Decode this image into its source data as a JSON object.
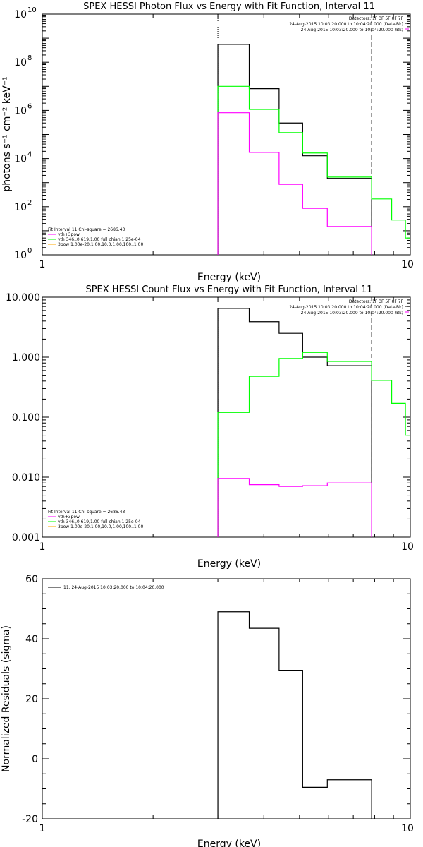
{
  "chart_data": [
    {
      "type": "line",
      "title": "SPEX HESSI Photon Flux vs Energy with Fit Function, Interval 11",
      "xlabel": "Energy (keV)",
      "ylabel": "photons s⁻¹ cm⁻² keV⁻¹",
      "xscale": "log",
      "yscale": "log",
      "xlim": [
        1,
        10
      ],
      "ylim": [
        1,
        10000000000.0
      ],
      "x_ticks": [
        "1",
        "10"
      ],
      "y_ticks": [
        "10^0",
        "10^2",
        "10^4",
        "10^6",
        "10^8",
        "10^10"
      ],
      "vlines": [
        {
          "x": 3.0,
          "style": "dotted",
          "color": "#000000"
        },
        {
          "x": 7.85,
          "style": "dashed",
          "color": "#000000"
        }
      ],
      "annotation_top_right": [
        "Detectors: 1F 3F 5F 6F 7F",
        "24-Aug-2015 10:03:20.000 to 10:04:20.000 (Data-Bk)",
        "24-Aug-2015 10:03:20.000 to 10:04:20.000 (Bk)"
      ],
      "annotation_bottom_left": [
        "Fit Interval 11   Chi-square = 2686.43",
        "vth+3pow",
        "vth 346.,0.619,1.00  full chian 1.25e-04",
        "3pow 1.00e-20,1.00,10.0,1.00,100.,1.00"
      ],
      "series": [
        {
          "name": "Data-Bk",
          "color": "#000000",
          "edges": [
            3.0,
            3.65,
            4.4,
            5.1,
            5.95,
            6.9,
            7.85
          ],
          "values": [
            550000000.0,
            8000000.0,
            300000.0,
            13000.0,
            1500.0,
            1500.0
          ]
        },
        {
          "name": "vth",
          "color": "#00ff00",
          "edges": [
            3.0,
            3.65,
            4.4,
            5.1,
            5.95,
            6.9,
            7.85,
            8.9,
            9.7,
            10.2
          ],
          "values": [
            10000000.0,
            1100000.0,
            120000.0,
            17000.0,
            1700.0,
            1700.0,
            210,
            28,
            5
          ]
        },
        {
          "name": "vth+3pow",
          "color": "#ff00ff",
          "edges": [
            3.0,
            3.65,
            4.4,
            5.1,
            5.95,
            6.9,
            7.85
          ],
          "values": [
            800000.0,
            18000.0,
            850,
            85,
            15,
            15
          ]
        }
      ]
    },
    {
      "type": "line",
      "title": "SPEX HESSI Count Flux vs Energy with Fit Function, Interval 11",
      "xlabel": "Energy (keV)",
      "ylabel": "",
      "xscale": "log",
      "yscale": "log",
      "xlim": [
        1,
        10
      ],
      "ylim": [
        0.001,
        10
      ],
      "x_ticks": [
        "1",
        "10"
      ],
      "y_ticks": [
        "0.001",
        "0.010",
        "0.100",
        "1.000",
        "10.000"
      ],
      "vlines": [
        {
          "x": 3.0,
          "style": "dotted",
          "color": "#000000"
        },
        {
          "x": 7.85,
          "style": "dashed",
          "color": "#000000"
        }
      ],
      "annotation_top_right": [
        "Detectors: 1F 3F 5F 6F 7F",
        "24-Aug-2015 10:03:20.000 to 10:04:20.000 (Data-Bk)",
        "24-Aug-2015 10:03:20.000 to 10:04:20.000 (Bk)"
      ],
      "annotation_bottom_left": [
        "Fit Interval 11   Chi-square = 2686.43",
        "vth+3pow",
        "vth 346.,0.619,1.00  full chian 1.25e-04",
        "3pow 1.00e-20,1.00,10.0,1.00,100.,1.00"
      ],
      "series": [
        {
          "name": "Data-Bk",
          "color": "#000000",
          "edges": [
            3.0,
            3.65,
            4.4,
            5.1,
            5.95,
            6.9,
            7.85
          ],
          "values": [
            6.5,
            3.9,
            2.5,
            1.0,
            0.72,
            0.72
          ]
        },
        {
          "name": "vth",
          "color": "#00ff00",
          "edges": [
            3.0,
            3.65,
            4.4,
            5.1,
            5.95,
            6.9,
            7.85,
            8.9,
            9.7,
            10.2
          ],
          "values": [
            0.12,
            0.48,
            0.95,
            1.2,
            0.85,
            0.85,
            0.41,
            0.17,
            0.05
          ]
        },
        {
          "name": "vth+3pow",
          "color": "#ff00ff",
          "edges": [
            3.0,
            3.65,
            4.4,
            5.1,
            5.95,
            6.9,
            7.85
          ],
          "values": [
            0.0095,
            0.0075,
            0.007,
            0.0072,
            0.008,
            0.008
          ]
        },
        {
          "name": "Bk",
          "color": "#000000",
          "edges": [
            7.85
          ],
          "values": [],
          "drop_to_min": true
        }
      ]
    },
    {
      "type": "line",
      "title": "",
      "xlabel": "Energy (keV)",
      "ylabel": "Normalized Residuals (sigma)",
      "xscale": "log",
      "yscale": "linear",
      "xlim": [
        1,
        10
      ],
      "ylim": [
        -20,
        60
      ],
      "x_ticks": [
        "1",
        "10"
      ],
      "y_ticks": [
        "-20",
        "0",
        "20",
        "40",
        "60"
      ],
      "legend": [
        "11. 24-Aug-2015 10:03:20.000 to 10:04:20.000"
      ],
      "series": [
        {
          "name": "11. 24-Aug-2015 10:03:20.000 to 10:04:20.000",
          "color": "#000000",
          "edges": [
            3.0,
            3.65,
            4.4,
            5.1,
            5.95,
            6.9,
            7.85
          ],
          "values": [
            49,
            43.5,
            29.5,
            -9.5,
            -7,
            -7
          ]
        }
      ]
    }
  ]
}
